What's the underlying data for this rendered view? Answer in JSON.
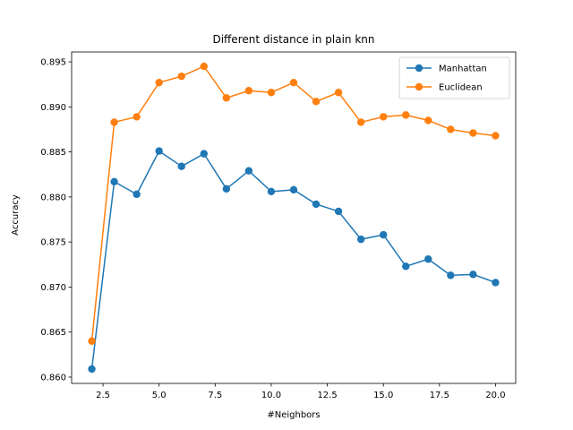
{
  "chart_data": {
    "type": "line",
    "title": "Different distance in plain knn",
    "xlabel": "#Neighbors",
    "ylabel": "Accuracy",
    "xlim": [
      1.1,
      20.9
    ],
    "ylim": [
      0.8593,
      0.8961
    ],
    "xticks": [
      "2.5",
      "5.0",
      "7.5",
      "10.0",
      "12.5",
      "15.0",
      "17.5",
      "20.0"
    ],
    "yticks": [
      "0.860",
      "0.865",
      "0.870",
      "0.875",
      "0.880",
      "0.885",
      "0.890",
      "0.895"
    ],
    "grid": false,
    "legend_position": "top-right",
    "x": [
      2,
      3,
      4,
      5,
      6,
      7,
      8,
      9,
      10,
      11,
      12,
      13,
      14,
      15,
      16,
      17,
      18,
      19,
      20
    ],
    "series": [
      {
        "name": "Manhattan",
        "color": "#1f77b4",
        "values": [
          0.8609,
          0.8817,
          0.8803,
          0.8851,
          0.8834,
          0.8848,
          0.8809,
          0.8829,
          0.8806,
          0.8808,
          0.8792,
          0.8784,
          0.8753,
          0.8758,
          0.8723,
          0.8731,
          0.8713,
          0.8714,
          0.8705
        ]
      },
      {
        "name": "Euclidean",
        "color": "#ff7f0e",
        "values": [
          0.864,
          0.8883,
          0.8889,
          0.8927,
          0.8934,
          0.8945,
          0.891,
          0.8918,
          0.8916,
          0.8927,
          0.8906,
          0.8916,
          0.8883,
          0.8889,
          0.8891,
          0.8885,
          0.8875,
          0.8871,
          0.8868
        ]
      }
    ]
  }
}
